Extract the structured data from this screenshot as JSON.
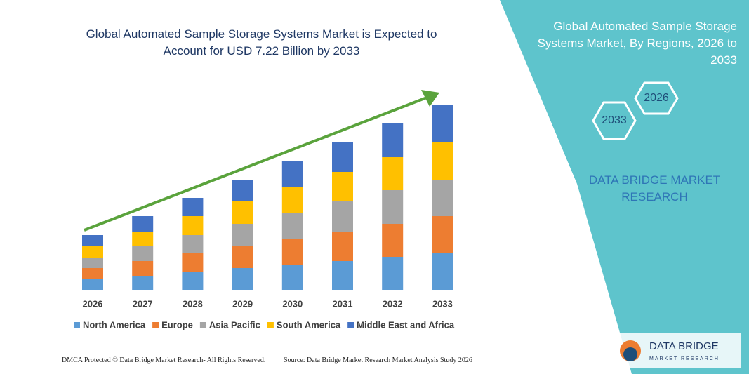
{
  "chart_data": {
    "type": "stacked_bar",
    "title": "Global Automated Sample Storage Systems Market is Expected to Account for USD 7.22 Billion by 2033",
    "categories": [
      "2026",
      "2027",
      "2028",
      "2029",
      "2030",
      "2031",
      "2032",
      "2033"
    ],
    "series": [
      {
        "name": "North America",
        "color": "#5b9bd5",
        "values": [
          15,
          20,
          25,
          31,
          36,
          41,
          47,
          52
        ]
      },
      {
        "name": "Europe",
        "color": "#ed7d31",
        "values": [
          16,
          21,
          27,
          32,
          37,
          42,
          47,
          53
        ]
      },
      {
        "name": "Asia Pacific",
        "color": "#a5a5a5",
        "values": [
          15,
          21,
          26,
          31,
          37,
          43,
          48,
          52
        ]
      },
      {
        "name": "South America",
        "color": "#ffc000",
        "values": [
          16,
          21,
          27,
          32,
          37,
          42,
          47,
          53
        ]
      },
      {
        "name": "Middle East and Africa",
        "color": "#4472c4",
        "values": [
          16,
          22,
          26,
          31,
          37,
          42,
          48,
          53
        ]
      }
    ],
    "legend": "bottom"
  },
  "panel": {
    "title": "Global Automated Sample Storage Systems Market, By Regions, 2026 to 2033",
    "hex_start": "2026",
    "hex_end": "2033",
    "brand": "DATA BRIDGE MARKET RESEARCH"
  },
  "logo": {
    "name": "DATA BRIDGE",
    "tagline": "MARKET RESEARCH"
  },
  "footer": {
    "left": "DMCA Protected © Data Bridge Market Research- All Rights Reserved.",
    "right": "Source: Data Bridge Market Research Market Analysis Study 2026"
  }
}
